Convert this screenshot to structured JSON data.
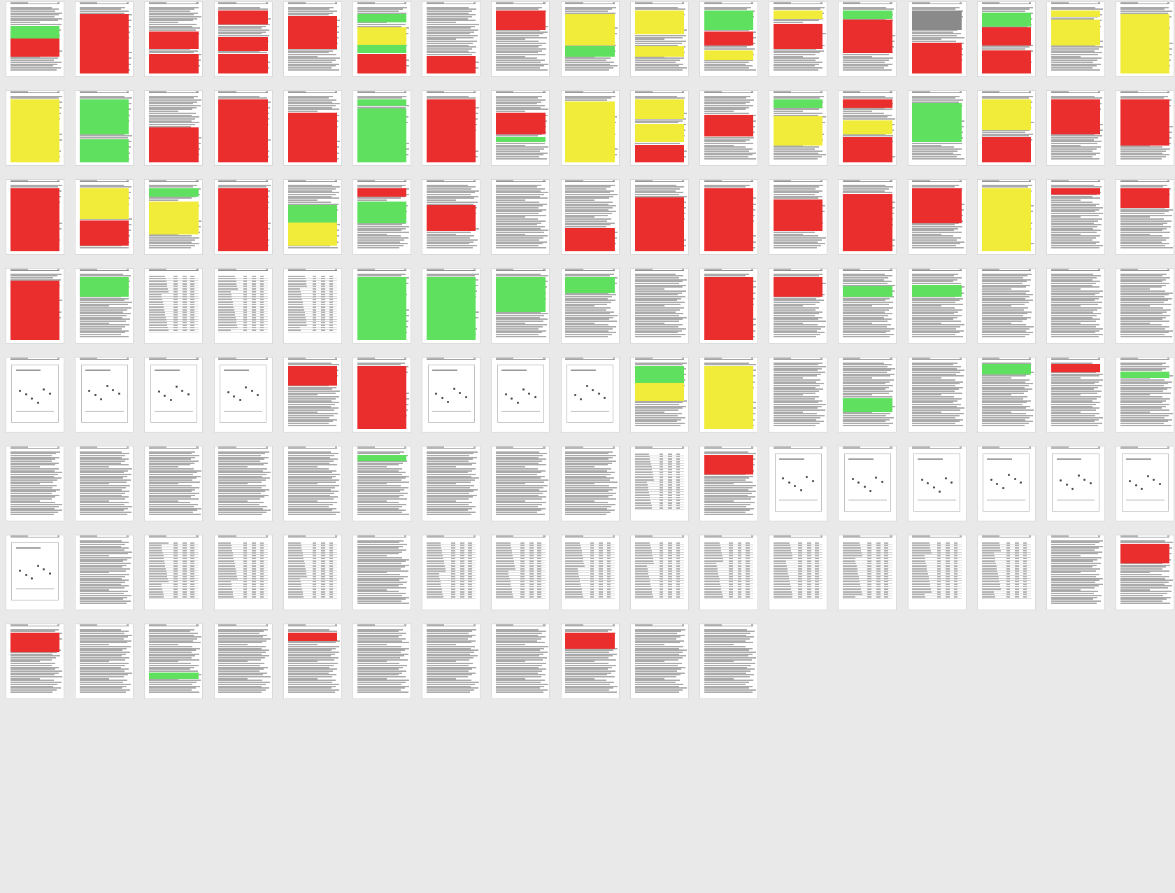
{
  "viewer": {
    "title": "",
    "mode": "thumbnail-grid"
  },
  "legend": {
    "red": "#ea2d2d",
    "yellow": "#f1ec39",
    "green": "#5fe15f",
    "gray": "#8a8a8a"
  },
  "pages": [
    {
      "type": "text",
      "hl": [
        {
          "c": "green",
          "s": 11,
          "e": 17
        },
        {
          "c": "red",
          "s": 18,
          "e": 26
        }
      ]
    },
    {
      "type": "text",
      "hl": [
        {
          "c": "red",
          "s": 5,
          "e": 35
        }
      ]
    },
    {
      "type": "text",
      "hl": [
        {
          "c": "red",
          "s": 14,
          "e": 22
        },
        {
          "c": "red",
          "s": 26,
          "e": 35
        }
      ]
    },
    {
      "type": "text",
      "hl": [
        {
          "c": "red",
          "s": 3,
          "e": 9
        },
        {
          "c": "red",
          "s": 17,
          "e": 23
        },
        {
          "c": "red",
          "s": 26,
          "e": 35
        }
      ]
    },
    {
      "type": "text",
      "hl": [
        {
          "c": "red",
          "s": 6,
          "e": 22
        }
      ]
    },
    {
      "type": "text",
      "hl": [
        {
          "c": "green",
          "s": 5,
          "e": 8
        },
        {
          "c": "yellow",
          "s": 12,
          "e": 20
        },
        {
          "c": "green",
          "s": 21,
          "e": 24
        },
        {
          "c": "red",
          "s": 26,
          "e": 35
        }
      ]
    },
    {
      "type": "text",
      "hl": [
        {
          "c": "red",
          "s": 27,
          "e": 35
        }
      ]
    },
    {
      "type": "text",
      "hl": [
        {
          "c": "red",
          "s": 3,
          "e": 12
        }
      ]
    },
    {
      "type": "text",
      "hl": [
        {
          "c": "yellow",
          "s": 5,
          "e": 20
        },
        {
          "c": "green",
          "s": 22,
          "e": 26
        }
      ]
    },
    {
      "type": "text",
      "hl": [
        {
          "c": "yellow",
          "s": 3,
          "e": 14
        },
        {
          "c": "yellow",
          "s": 22,
          "e": 26
        }
      ]
    },
    {
      "type": "text",
      "hl": [
        {
          "c": "green",
          "s": 3,
          "e": 12
        },
        {
          "c": "red",
          "s": 14,
          "e": 20
        },
        {
          "c": "yellow",
          "s": 24,
          "e": 28
        }
      ]
    },
    {
      "type": "text",
      "hl": [
        {
          "c": "yellow",
          "s": 3,
          "e": 6
        },
        {
          "c": "red",
          "s": 10,
          "e": 22
        }
      ]
    },
    {
      "type": "text",
      "hl": [
        {
          "c": "green",
          "s": 3,
          "e": 6
        },
        {
          "c": "red",
          "s": 8,
          "e": 24
        }
      ]
    },
    {
      "type": "text",
      "hl": [
        {
          "c": "gray",
          "s": 3,
          "e": 12
        },
        {
          "c": "red",
          "s": 20,
          "e": 35
        }
      ]
    },
    {
      "type": "text",
      "hl": [
        {
          "c": "green",
          "s": 4,
          "e": 10
        },
        {
          "c": "red",
          "s": 12,
          "e": 20
        },
        {
          "c": "red",
          "s": 24,
          "e": 35
        }
      ]
    },
    {
      "type": "text",
      "hl": [
        {
          "c": "yellow",
          "s": 3,
          "e": 5
        },
        {
          "c": "yellow",
          "s": 8,
          "e": 20
        }
      ]
    },
    {
      "type": "text",
      "hl": [
        {
          "c": "yellow",
          "s": 5,
          "e": 35
        }
      ]
    },
    {
      "type": "text",
      "hl": [
        {
          "c": "yellow",
          "s": 3,
          "e": 35
        }
      ]
    },
    {
      "type": "text",
      "hl": [
        {
          "c": "green",
          "s": 3,
          "e": 20
        },
        {
          "c": "green",
          "s": 24,
          "e": 35
        }
      ]
    },
    {
      "type": "text",
      "hl": [
        {
          "c": "red",
          "s": 18,
          "e": 35
        }
      ]
    },
    {
      "type": "text",
      "hl": [
        {
          "c": "red",
          "s": 3,
          "e": 35
        }
      ]
    },
    {
      "type": "text",
      "hl": [
        {
          "c": "red",
          "s": 10,
          "e": 35
        }
      ]
    },
    {
      "type": "text",
      "hl": [
        {
          "c": "green",
          "s": 3,
          "e": 5
        },
        {
          "c": "green",
          "s": 8,
          "e": 35
        }
      ]
    },
    {
      "type": "text",
      "hl": [
        {
          "c": "red",
          "s": 3,
          "e": 35
        }
      ]
    },
    {
      "type": "text",
      "hl": [
        {
          "c": "red",
          "s": 10,
          "e": 20
        },
        {
          "c": "green",
          "s": 23,
          "e": 24
        }
      ]
    },
    {
      "type": "text",
      "hl": [
        {
          "c": "yellow",
          "s": 4,
          "e": 35
        }
      ]
    },
    {
      "type": "text",
      "hl": [
        {
          "c": "yellow",
          "s": 3,
          "e": 12
        },
        {
          "c": "yellow",
          "s": 16,
          "e": 24
        },
        {
          "c": "red",
          "s": 27,
          "e": 35
        }
      ]
    },
    {
      "type": "text",
      "hl": [
        {
          "c": "red",
          "s": 11,
          "e": 21
        }
      ]
    },
    {
      "type": "text",
      "hl": [
        {
          "c": "green",
          "s": 3,
          "e": 6
        },
        {
          "c": "yellow",
          "s": 12,
          "e": 26
        }
      ]
    },
    {
      "type": "text",
      "hl": [
        {
          "c": "red",
          "s": 3,
          "e": 6
        },
        {
          "c": "yellow",
          "s": 14,
          "e": 20
        },
        {
          "c": "red",
          "s": 23,
          "e": 35
        }
      ]
    },
    {
      "type": "text",
      "hl": [
        {
          "c": "green",
          "s": 5,
          "e": 24
        }
      ]
    },
    {
      "type": "text",
      "hl": [
        {
          "c": "yellow",
          "s": 3,
          "e": 18
        },
        {
          "c": "red",
          "s": 23,
          "e": 35
        }
      ]
    },
    {
      "type": "text",
      "hl": [
        {
          "c": "red",
          "s": 3,
          "e": 20
        }
      ]
    },
    {
      "type": "text",
      "hl": [
        {
          "c": "red",
          "s": 3,
          "e": 26
        }
      ]
    },
    {
      "type": "text",
      "hl": [
        {
          "c": "red",
          "s": 3,
          "e": 35
        }
      ]
    },
    {
      "type": "text",
      "hl": [
        {
          "c": "yellow",
          "s": 3,
          "e": 18
        },
        {
          "c": "red",
          "s": 20,
          "e": 32
        }
      ]
    },
    {
      "type": "text",
      "hl": [
        {
          "c": "green",
          "s": 3,
          "e": 6
        },
        {
          "c": "yellow",
          "s": 10,
          "e": 26
        }
      ]
    },
    {
      "type": "text",
      "hl": [
        {
          "c": "red",
          "s": 3,
          "e": 35
        }
      ]
    },
    {
      "type": "text",
      "hl": [
        {
          "c": "green",
          "s": 12,
          "e": 20
        },
        {
          "c": "yellow",
          "s": 21,
          "e": 32
        }
      ]
    },
    {
      "type": "text",
      "hl": [
        {
          "c": "red",
          "s": 3,
          "e": 6
        },
        {
          "c": "green",
          "s": 10,
          "e": 20
        }
      ]
    },
    {
      "type": "text",
      "hl": [
        {
          "c": "red",
          "s": 12,
          "e": 24
        }
      ]
    },
    {
      "type": "text",
      "hl": []
    },
    {
      "type": "text",
      "hl": [
        {
          "c": "red",
          "s": 24,
          "e": 35
        }
      ]
    },
    {
      "type": "text",
      "hl": [
        {
          "c": "red",
          "s": 8,
          "e": 35
        }
      ]
    },
    {
      "type": "text",
      "hl": [
        {
          "c": "red",
          "s": 3,
          "e": 35
        }
      ]
    },
    {
      "type": "text",
      "hl": [
        {
          "c": "red",
          "s": 9,
          "e": 24
        }
      ]
    },
    {
      "type": "text",
      "hl": [
        {
          "c": "red",
          "s": 6,
          "e": 35
        }
      ]
    },
    {
      "type": "text",
      "hl": [
        {
          "c": "red",
          "s": 3,
          "e": 20
        }
      ]
    },
    {
      "type": "text",
      "hl": [
        {
          "c": "yellow",
          "s": 3,
          "e": 35
        }
      ]
    },
    {
      "type": "text",
      "hl": [
        {
          "c": "red",
          "s": 3,
          "e": 5
        }
      ]
    },
    {
      "type": "text",
      "hl": [
        {
          "c": "red",
          "s": 3,
          "e": 12
        }
      ]
    },
    {
      "type": "text",
      "hl": [
        {
          "c": "red",
          "s": 5,
          "e": 35
        }
      ]
    },
    {
      "type": "text",
      "hl": [
        {
          "c": "green",
          "s": 3,
          "e": 12
        }
      ]
    },
    {
      "type": "table",
      "hl": []
    },
    {
      "type": "table",
      "hl": []
    },
    {
      "type": "table",
      "hl": []
    },
    {
      "type": "text",
      "hl": [
        {
          "c": "green",
          "s": 3,
          "e": 35
        }
      ]
    },
    {
      "type": "text",
      "hl": [
        {
          "c": "green",
          "s": 3,
          "e": 35
        }
      ]
    },
    {
      "type": "text",
      "hl": [
        {
          "c": "green",
          "s": 3,
          "e": 20
        }
      ]
    },
    {
      "type": "text",
      "hl": [
        {
          "c": "green",
          "s": 3,
          "e": 10
        }
      ]
    },
    {
      "type": "text",
      "hl": []
    },
    {
      "type": "text",
      "hl": [
        {
          "c": "red",
          "s": 3,
          "e": 35
        }
      ]
    },
    {
      "type": "text",
      "hl": [
        {
          "c": "red",
          "s": 3,
          "e": 12
        }
      ]
    },
    {
      "type": "text",
      "hl": [
        {
          "c": "green",
          "s": 8,
          "e": 12
        }
      ]
    },
    {
      "type": "text",
      "hl": [
        {
          "c": "green",
          "s": 7,
          "e": 12
        }
      ]
    },
    {
      "type": "text",
      "hl": []
    },
    {
      "type": "text",
      "hl": []
    },
    {
      "type": "text",
      "hl": []
    },
    {
      "type": "chart",
      "hl": []
    },
    {
      "type": "chart",
      "hl": []
    },
    {
      "type": "chart",
      "hl": []
    },
    {
      "type": "chart",
      "hl": []
    },
    {
      "type": "text",
      "hl": [
        {
          "c": "red",
          "s": 3,
          "e": 12
        }
      ]
    },
    {
      "type": "text",
      "hl": [
        {
          "c": "red",
          "s": 3,
          "e": 35
        }
      ]
    },
    {
      "type": "chart",
      "hl": []
    },
    {
      "type": "chart",
      "hl": []
    },
    {
      "type": "chart",
      "hl": []
    },
    {
      "type": "text",
      "hl": [
        {
          "c": "green",
          "s": 3,
          "e": 12
        },
        {
          "c": "yellow",
          "s": 12,
          "e": 20
        }
      ]
    },
    {
      "type": "text",
      "hl": [
        {
          "c": "yellow",
          "s": 3,
          "e": 35
        }
      ]
    },
    {
      "type": "text",
      "hl": []
    },
    {
      "type": "text",
      "hl": [
        {
          "c": "green",
          "s": 20,
          "e": 26
        }
      ]
    },
    {
      "type": "text",
      "hl": []
    },
    {
      "type": "text",
      "hl": [
        {
          "c": "green",
          "s": 2,
          "e": 6
        }
      ]
    },
    {
      "type": "text",
      "hl": [
        {
          "c": "red",
          "s": 2,
          "e": 5
        }
      ]
    },
    {
      "type": "text",
      "hl": [
        {
          "c": "green",
          "s": 6,
          "e": 8
        }
      ]
    },
    {
      "type": "text",
      "hl": []
    },
    {
      "type": "text",
      "hl": []
    },
    {
      "type": "text",
      "hl": []
    },
    {
      "type": "text",
      "hl": []
    },
    {
      "type": "text",
      "hl": []
    },
    {
      "type": "text",
      "hl": [
        {
          "c": "green",
          "s": 3,
          "e": 5
        }
      ]
    },
    {
      "type": "text",
      "hl": []
    },
    {
      "type": "text",
      "hl": []
    },
    {
      "type": "text",
      "hl": []
    },
    {
      "type": "table",
      "hl": []
    },
    {
      "type": "text",
      "hl": [
        {
          "c": "red",
          "s": 3,
          "e": 12
        }
      ]
    },
    {
      "type": "chart",
      "hl": []
    },
    {
      "type": "chart",
      "hl": []
    },
    {
      "type": "chart",
      "hl": []
    },
    {
      "type": "chart",
      "hl": []
    },
    {
      "type": "chart",
      "hl": []
    },
    {
      "type": "chart",
      "hl": []
    },
    {
      "type": "chart",
      "hl": []
    },
    {
      "type": "text",
      "hl": []
    },
    {
      "type": "table",
      "hl": []
    },
    {
      "type": "table",
      "hl": []
    },
    {
      "type": "table",
      "hl": []
    },
    {
      "type": "text",
      "hl": []
    },
    {
      "type": "table",
      "hl": []
    },
    {
      "type": "table",
      "hl": []
    },
    {
      "type": "table",
      "hl": []
    },
    {
      "type": "table",
      "hl": []
    },
    {
      "type": "table",
      "hl": []
    },
    {
      "type": "table",
      "hl": []
    },
    {
      "type": "table",
      "hl": []
    },
    {
      "type": "table",
      "hl": []
    },
    {
      "type": "table",
      "hl": []
    },
    {
      "type": "text",
      "hl": []
    },
    {
      "type": "text",
      "hl": [
        {
          "c": "red",
          "s": 3,
          "e": 12
        }
      ]
    },
    {
      "type": "text",
      "hl": [
        {
          "c": "red",
          "s": 3,
          "e": 12
        }
      ]
    },
    {
      "type": "text",
      "hl": []
    },
    {
      "type": "text",
      "hl": [
        {
          "c": "green",
          "s": 24,
          "e": 26
        }
      ]
    },
    {
      "type": "text",
      "hl": []
    },
    {
      "type": "text",
      "hl": [
        {
          "c": "red",
          "s": 3,
          "e": 6
        }
      ]
    },
    {
      "type": "text",
      "hl": []
    },
    {
      "type": "text",
      "hl": []
    },
    {
      "type": "text",
      "hl": []
    },
    {
      "type": "text",
      "hl": [
        {
          "c": "red",
          "s": 3,
          "e": 10
        }
      ]
    },
    {
      "type": "text",
      "hl": []
    },
    {
      "type": "text",
      "hl": []
    }
  ]
}
